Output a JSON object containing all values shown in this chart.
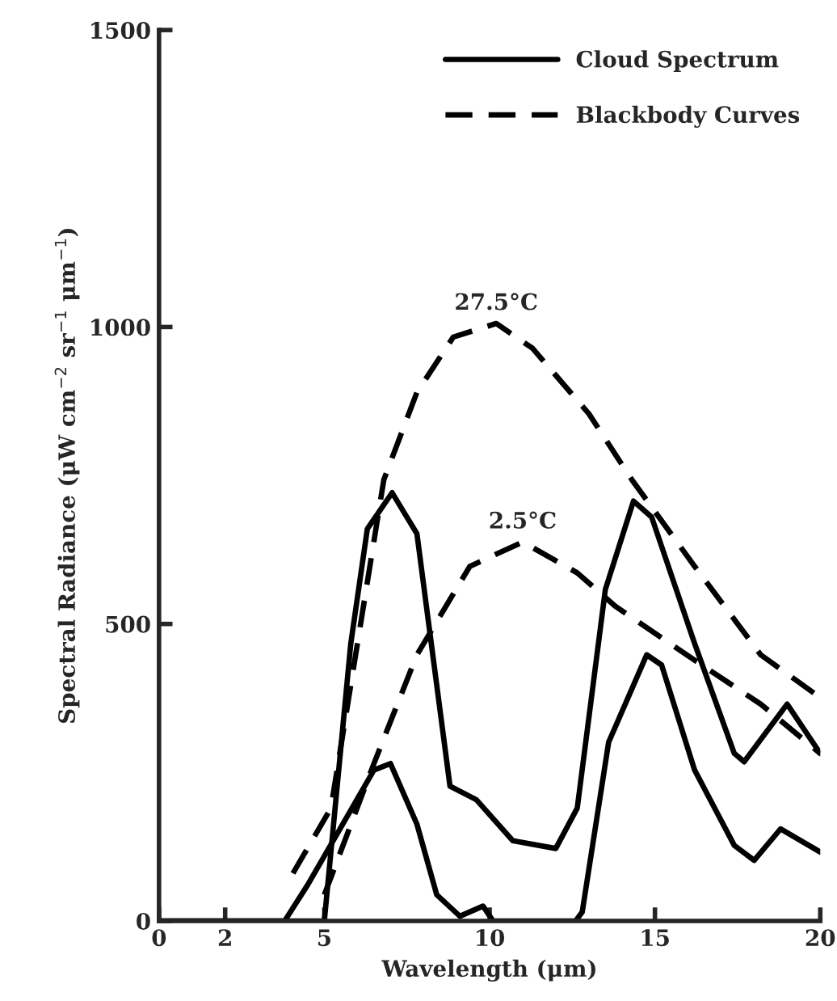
{
  "chart_data": {
    "type": "line",
    "xlabel": "Wavelength (μm)",
    "ylabel": "Spectral Radiance (μW cm$^{−2}$ sr$^{−1}$ μm$^{−1}$)",
    "xlim": [
      0,
      20
    ],
    "ylim": [
      0,
      1500
    ],
    "xticks": [
      0,
      2,
      5,
      10,
      15,
      20
    ],
    "yticks": [
      0,
      500,
      1000,
      1500
    ],
    "grid": false,
    "legend": "top right",
    "series": [
      {
        "name": "Cloud Spectrum",
        "color": "#000000",
        "line_style": "solid",
        "x": [
          0,
          5.0,
          5.8,
          6.3,
          7.05,
          7.8,
          8.8,
          9.6,
          10.7,
          12.0,
          12.65,
          13.5,
          14.35,
          14.9,
          16.2,
          17.4,
          17.7,
          19.0,
          20
        ],
        "values": [
          0,
          0,
          467,
          660,
          721,
          652,
          227,
          204,
          135,
          122,
          190,
          558,
          707,
          680,
          467,
          282,
          268,
          365,
          282
        ]
      },
      {
        "color": "#000000",
        "line_style": "solid",
        "x": [
          0,
          3.8,
          4.5,
          6.5,
          7.0,
          7.8,
          8.4,
          9.1,
          9.8,
          10.1,
          12.6,
          12.8,
          13.6,
          14.75,
          15.2,
          16.2,
          17.4,
          18.0,
          18.8,
          20
        ],
        "values": [
          0,
          0,
          61,
          254,
          265,
          163,
          44,
          8,
          25,
          0,
          0,
          15,
          301,
          448,
          431,
          254,
          127,
          102,
          155,
          116
        ]
      },
      {
        "name": "Blackbody Curves",
        "color": "#000000",
        "line_style": "dashed",
        "x": [
          4.05,
          5.2,
          6.8,
          7.8,
          8.9,
          10.2,
          11.3,
          13.0,
          14.3,
          16.2,
          18.2,
          20
        ],
        "values": [
          80,
          190,
          743,
          890,
          983,
          1006,
          964,
          854,
          743,
          597,
          448,
          376
        ]
      },
      {
        "color": "#000000",
        "line_style": "dashed",
        "x": [
          5.0,
          6.5,
          7.8,
          9.4,
          11.0,
          12.65,
          13.8,
          16.2,
          18.2,
          20
        ],
        "values": [
          44,
          265,
          448,
          597,
          638,
          586,
          530,
          439,
          365,
          282
        ]
      }
    ],
    "annotations": [
      "27.5°C",
      "2.5°C"
    ]
  }
}
